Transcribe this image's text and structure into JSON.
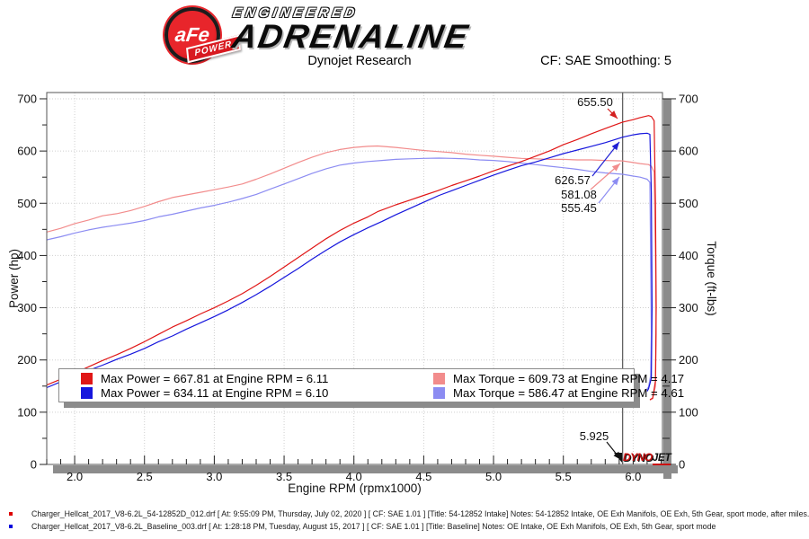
{
  "header": {
    "logo": {
      "badge_text": "aFe",
      "badge_sub": "POWER",
      "line1": "ENGINEERED",
      "line2": "ADRENALINE"
    },
    "title": "Dynojet Research",
    "cf_label": "CF: SAE Smoothing: 5"
  },
  "chart_data": {
    "type": "line",
    "xlabel": "Engine RPM (rpmx1000)",
    "ylabel_left": "Power (hp)",
    "ylabel_right": "Torque (ft-lbs)",
    "xlim": [
      1.8,
      6.21
    ],
    "ylim": [
      0,
      712
    ],
    "grid": true,
    "x_ticks": [
      "2.0",
      "2.5",
      "3.0",
      "3.5",
      "4.0",
      "4.5",
      "5.0",
      "5.5",
      "6.0"
    ],
    "x_minor_step": 0.1,
    "y_ticks": [
      0,
      100,
      200,
      300,
      400,
      500,
      600,
      700
    ],
    "y_minor_step": 50,
    "cursor_rpm": 5.925,
    "grid_color": "#cfcfcf",
    "shadow_color": "#8c8c8c",
    "series": [
      {
        "name": "torque-intake",
        "color": "#f28c8c",
        "points": [
          [
            1.8,
            445
          ],
          [
            1.9,
            452
          ],
          [
            2.0,
            461
          ],
          [
            2.1,
            468
          ],
          [
            2.2,
            476
          ],
          [
            2.3,
            480
          ],
          [
            2.4,
            486
          ],
          [
            2.5,
            494
          ],
          [
            2.6,
            503
          ],
          [
            2.7,
            511
          ],
          [
            2.8,
            516
          ],
          [
            2.9,
            521
          ],
          [
            3.0,
            526
          ],
          [
            3.1,
            531
          ],
          [
            3.2,
            537
          ],
          [
            3.3,
            546
          ],
          [
            3.4,
            556
          ],
          [
            3.5,
            567
          ],
          [
            3.6,
            578
          ],
          [
            3.7,
            588
          ],
          [
            3.8,
            597
          ],
          [
            3.9,
            603
          ],
          [
            4.0,
            607
          ],
          [
            4.1,
            609
          ],
          [
            4.17,
            609.7
          ],
          [
            4.3,
            607
          ],
          [
            4.4,
            604
          ],
          [
            4.5,
            601
          ],
          [
            4.6,
            599
          ],
          [
            4.7,
            597
          ],
          [
            4.8,
            594
          ],
          [
            4.9,
            592
          ],
          [
            5.0,
            590
          ],
          [
            5.1,
            588
          ],
          [
            5.2,
            586
          ],
          [
            5.3,
            585
          ],
          [
            5.4,
            584
          ],
          [
            5.5,
            584
          ],
          [
            5.6,
            583
          ],
          [
            5.7,
            583
          ],
          [
            5.8,
            582
          ],
          [
            5.925,
            581.1
          ],
          [
            6.0,
            578
          ],
          [
            6.05,
            576
          ],
          [
            6.11,
            574
          ],
          [
            6.13,
            571
          ],
          [
            6.15,
            560
          ],
          [
            6.16,
            400
          ],
          [
            6.165,
            250
          ],
          [
            6.16,
            150
          ],
          [
            6.14,
            126
          ],
          [
            6.12,
            123
          ]
        ]
      },
      {
        "name": "torque-baseline",
        "color": "#8c8cf2",
        "points": [
          [
            1.8,
            430
          ],
          [
            1.9,
            436
          ],
          [
            2.0,
            443
          ],
          [
            2.1,
            449
          ],
          [
            2.2,
            454
          ],
          [
            2.3,
            458
          ],
          [
            2.4,
            462
          ],
          [
            2.5,
            467
          ],
          [
            2.6,
            474
          ],
          [
            2.7,
            479
          ],
          [
            2.8,
            485
          ],
          [
            2.9,
            491
          ],
          [
            3.0,
            496
          ],
          [
            3.1,
            502
          ],
          [
            3.2,
            509
          ],
          [
            3.3,
            517
          ],
          [
            3.4,
            527
          ],
          [
            3.5,
            537
          ],
          [
            3.6,
            547
          ],
          [
            3.7,
            557
          ],
          [
            3.8,
            566
          ],
          [
            3.9,
            573
          ],
          [
            4.0,
            577
          ],
          [
            4.1,
            580
          ],
          [
            4.2,
            582
          ],
          [
            4.3,
            584
          ],
          [
            4.4,
            585
          ],
          [
            4.5,
            586
          ],
          [
            4.61,
            586.5
          ],
          [
            4.7,
            586
          ],
          [
            4.8,
            585
          ],
          [
            4.9,
            583
          ],
          [
            5.0,
            582
          ],
          [
            5.1,
            580
          ],
          [
            5.2,
            577
          ],
          [
            5.3,
            574
          ],
          [
            5.4,
            571
          ],
          [
            5.5,
            568
          ],
          [
            5.6,
            565
          ],
          [
            5.7,
            561
          ],
          [
            5.8,
            558
          ],
          [
            5.925,
            555.5
          ],
          [
            6.0,
            552
          ],
          [
            6.05,
            550
          ],
          [
            6.1,
            546
          ],
          [
            6.12,
            540
          ],
          [
            6.125,
            400
          ],
          [
            6.13,
            250
          ],
          [
            6.125,
            170
          ],
          [
            6.11,
            148
          ],
          [
            6.095,
            143
          ]
        ]
      },
      {
        "name": "power-intake",
        "color": "#e01616",
        "points": [
          [
            1.8,
            152
          ],
          [
            1.9,
            163
          ],
          [
            2.0,
            175
          ],
          [
            2.1,
            187
          ],
          [
            2.2,
            199
          ],
          [
            2.3,
            210
          ],
          [
            2.4,
            222
          ],
          [
            2.5,
            235
          ],
          [
            2.6,
            249
          ],
          [
            2.7,
            263
          ],
          [
            2.8,
            275
          ],
          [
            2.9,
            288
          ],
          [
            3.0,
            300
          ],
          [
            3.1,
            313
          ],
          [
            3.2,
            327
          ],
          [
            3.3,
            343
          ],
          [
            3.4,
            360
          ],
          [
            3.5,
            378
          ],
          [
            3.6,
            396
          ],
          [
            3.7,
            414
          ],
          [
            3.8,
            432
          ],
          [
            3.9,
            448
          ],
          [
            4.0,
            462
          ],
          [
            4.1,
            474
          ],
          [
            4.17,
            484
          ],
          [
            4.3,
            497
          ],
          [
            4.4,
            506
          ],
          [
            4.5,
            515
          ],
          [
            4.6,
            524
          ],
          [
            4.7,
            534
          ],
          [
            4.8,
            543
          ],
          [
            4.9,
            552
          ],
          [
            5.0,
            562
          ],
          [
            5.1,
            571
          ],
          [
            5.2,
            580
          ],
          [
            5.3,
            590
          ],
          [
            5.4,
            600
          ],
          [
            5.5,
            612
          ],
          [
            5.6,
            622
          ],
          [
            5.7,
            633
          ],
          [
            5.8,
            643
          ],
          [
            5.925,
            655.5
          ],
          [
            6.0,
            660
          ],
          [
            6.05,
            664
          ],
          [
            6.11,
            667.8
          ],
          [
            6.13,
            666
          ],
          [
            6.15,
            658
          ],
          [
            6.16,
            500
          ],
          [
            6.165,
            300
          ],
          [
            6.16,
            160
          ],
          [
            6.14,
            127
          ],
          [
            6.12,
            124
          ]
        ]
      },
      {
        "name": "power-baseline",
        "color": "#1616dd",
        "points": [
          [
            1.8,
            147
          ],
          [
            1.9,
            158
          ],
          [
            2.0,
            169
          ],
          [
            2.1,
            180
          ],
          [
            2.2,
            190
          ],
          [
            2.3,
            201
          ],
          [
            2.4,
            211
          ],
          [
            2.5,
            222
          ],
          [
            2.6,
            235
          ],
          [
            2.7,
            246
          ],
          [
            2.8,
            259
          ],
          [
            2.9,
            271
          ],
          [
            3.0,
            283
          ],
          [
            3.1,
            296
          ],
          [
            3.2,
            310
          ],
          [
            3.3,
            325
          ],
          [
            3.4,
            341
          ],
          [
            3.5,
            358
          ],
          [
            3.6,
            375
          ],
          [
            3.7,
            393
          ],
          [
            3.8,
            410
          ],
          [
            3.9,
            426
          ],
          [
            4.0,
            440
          ],
          [
            4.1,
            453
          ],
          [
            4.2,
            465
          ],
          [
            4.3,
            478
          ],
          [
            4.4,
            490
          ],
          [
            4.5,
            502
          ],
          [
            4.61,
            515
          ],
          [
            4.7,
            524
          ],
          [
            4.8,
            534
          ],
          [
            4.9,
            544
          ],
          [
            5.0,
            554
          ],
          [
            5.1,
            563
          ],
          [
            5.2,
            572
          ],
          [
            5.3,
            579
          ],
          [
            5.4,
            587
          ],
          [
            5.5,
            595
          ],
          [
            5.6,
            602
          ],
          [
            5.7,
            609
          ],
          [
            5.8,
            616
          ],
          [
            5.925,
            626.6
          ],
          [
            6.0,
            631
          ],
          [
            6.05,
            633
          ],
          [
            6.1,
            634.1
          ],
          [
            6.12,
            632
          ],
          [
            6.13,
            520
          ],
          [
            6.135,
            300
          ],
          [
            6.13,
            165
          ],
          [
            6.11,
            145
          ],
          [
            6.1,
            140
          ]
        ]
      }
    ],
    "legend": [
      {
        "color": "#e01616",
        "label": "Max Power = 667.81 at Engine RPM = 6.11"
      },
      {
        "color": "#f28c8c",
        "label": "Max Torque = 609.73 at Engine RPM = 4.17"
      },
      {
        "color": "#1616dd",
        "label": "Max Power = 634.11 at Engine RPM = 6.10"
      },
      {
        "color": "#8c8cf2",
        "label": "Max Torque = 586.47 at Engine RPM = 4.61"
      }
    ],
    "annotations": [
      {
        "label": "655.50",
        "color": "#d42020",
        "tx": 662,
        "ty": 114,
        "x1": 676,
        "y1": 121,
        "x2": 687,
        "y2": 132
      },
      {
        "label": "626.57",
        "color": "#2020d4",
        "tx": 637,
        "ty": 201,
        "x1": 659,
        "y1": 196,
        "x2": 689,
        "y2": 158
      },
      {
        "label": "581.08",
        "color": "#f28c8c",
        "tx": 644,
        "ty": 217,
        "x1": 657,
        "y1": 211,
        "x2": 690,
        "y2": 182
      },
      {
        "label": "555.45",
        "color": "#8c8cf2",
        "tx": 644,
        "ty": 232,
        "x1": 666,
        "y1": 226,
        "x2": 689,
        "y2": 197
      },
      {
        "label": "5.925",
        "color": "#111111",
        "tx": 661,
        "ty": 486,
        "x1": 675,
        "y1": 492,
        "x2": 691,
        "y2": 512
      }
    ],
    "watermark": {
      "dyno": "DYNO",
      "jet": "JET"
    }
  },
  "runs": [
    {
      "color": "#dd0000",
      "text": "Charger_Hellcat_2017_V8-6.2L_54-12852D_012.drf [ At: 9:55:09 PM, Thursday, July 02, 2020 ] [ CF: SAE 1.01 ] [Title: 54-12852 Intake]  Notes: 54-12852 Intake, OE Exh Manifols, OE Exh, 5th Gear, sport mode, after miles."
    },
    {
      "color": "#0000dd",
      "text": "Charger_Hellcat_2017_V8-6.2L_Baseline_003.drf [ At: 1:28:18 PM, Tuesday, August 15, 2017 ] [ CF: SAE 1.01 ] [Title: Baseline]  Notes: OE Intake, OE Exh Manifols, OE Exh, 5th Gear, sport mode"
    }
  ]
}
